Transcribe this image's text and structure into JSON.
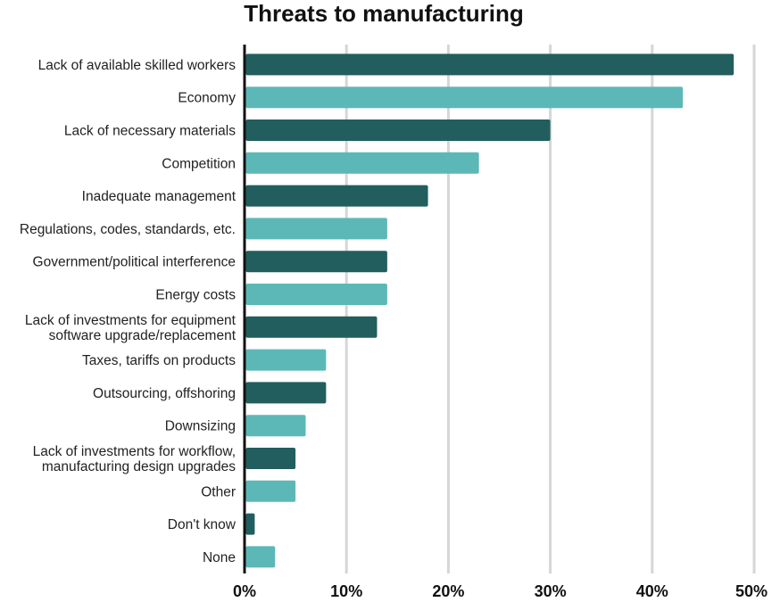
{
  "chart_data": {
    "type": "bar",
    "orientation": "horizontal",
    "title": "Threats to manufacturing",
    "xlabel": "",
    "ylabel": "",
    "xlim": [
      0,
      50
    ],
    "grid": true,
    "x_ticks": [
      "0%",
      "10%",
      "20%",
      "30%",
      "40%",
      "50%"
    ],
    "categories": [
      "Lack of available skilled workers",
      "Economy",
      "Lack of necessary materials",
      "Competition",
      "Inadequate management",
      "Regulations, codes, standards, etc.",
      "Government/political interference",
      "Energy costs",
      "Lack of investments for equipment software upgrade/replacement",
      "Taxes, tariffs on products",
      "Outsourcing, offshoring",
      "Downsizing",
      "Lack of investments for workflow, manufacturing design upgrades",
      "Other",
      "Don't know",
      "None"
    ],
    "category_lines": [
      [
        "Lack of available skilled workers"
      ],
      [
        "Economy"
      ],
      [
        "Lack of necessary materials"
      ],
      [
        "Competition"
      ],
      [
        "Inadequate management"
      ],
      [
        "Regulations, codes, standards, etc."
      ],
      [
        "Government/political interference"
      ],
      [
        "Energy costs"
      ],
      [
        "Lack of investments for equipment",
        "software upgrade/replacement"
      ],
      [
        "Taxes, tariffs on products"
      ],
      [
        "Outsourcing, offshoring"
      ],
      [
        "Downsizing"
      ],
      [
        "Lack of investments for workflow,",
        "manufacturing design upgrades"
      ],
      [
        "Other"
      ],
      [
        "Don't know"
      ],
      [
        "None"
      ]
    ],
    "values": [
      48,
      43,
      30,
      23,
      18,
      14,
      14,
      14,
      13,
      8,
      8,
      6,
      5,
      5,
      1,
      3
    ],
    "colors": [
      "#225e5e",
      "#5cb8b7"
    ]
  }
}
